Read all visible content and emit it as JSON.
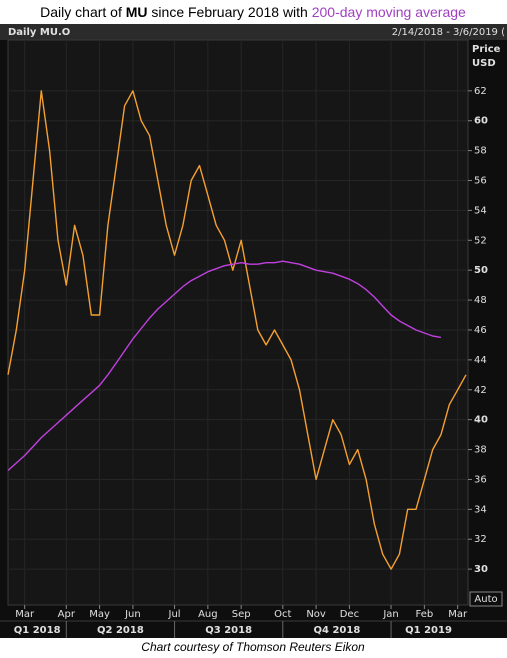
{
  "chart_data": {
    "type": "line",
    "title": {
      "prefix": "Daily chart of ",
      "ticker": "MU",
      "middle": " since February 2018 with ",
      "highlight": "200-day moving average"
    },
    "header_left": "Daily MU.O",
    "header_right": "2/14/2018 - 3/6/2019 (",
    "y_label_top": "Price",
    "y_label_unit": "USD",
    "scale_button": "Auto",
    "caption": "Chart courtesy of Thomson Reuters Eikon",
    "categories": [
      null,
      null,
      "Mar",
      null,
      null,
      null,
      null,
      "Apr",
      null,
      null,
      null,
      "May",
      null,
      null,
      null,
      "Jun",
      null,
      null,
      null,
      null,
      "Jul",
      null,
      null,
      null,
      "Aug",
      null,
      null,
      null,
      "Sep",
      null,
      null,
      null,
      null,
      "Oct",
      null,
      null,
      null,
      "Nov",
      null,
      null,
      null,
      "Dec",
      null,
      null,
      null,
      null,
      "Jan",
      null,
      null,
      null,
      "Feb",
      null,
      null,
      null,
      "Mar",
      null
    ],
    "quarter_categories": [
      "Q1 2018",
      null,
      null,
      null,
      null,
      null,
      null,
      "Q2 2018",
      null,
      null,
      null,
      null,
      null,
      null,
      null,
      null,
      null,
      null,
      null,
      null,
      "Q3 2018",
      null,
      null,
      null,
      null,
      null,
      null,
      null,
      null,
      null,
      null,
      null,
      null,
      "Q4 2018",
      null,
      null,
      null,
      null,
      null,
      null,
      null,
      null,
      null,
      null,
      null,
      null,
      "Q1 2019",
      null,
      null,
      null,
      null,
      null,
      null,
      null,
      null,
      null
    ],
    "series": [
      {
        "color": "#f5a030",
        "values": [
          43,
          46,
          50,
          56,
          62,
          58,
          52,
          49,
          53,
          51,
          47,
          47,
          53,
          57,
          61,
          62,
          60,
          59,
          56,
          53,
          51,
          53,
          56,
          57,
          55,
          53,
          52,
          50,
          52,
          49,
          46,
          45,
          46,
          45,
          44,
          42,
          39,
          36,
          38,
          40,
          39,
          37,
          38,
          36,
          33,
          31,
          30,
          31,
          34,
          34,
          36,
          38,
          39,
          41,
          42,
          43
        ]
      },
      {
        "color": "#c040e0",
        "values": [
          36.6,
          37.1,
          37.6,
          38.2,
          38.8,
          39.3,
          39.8,
          40.3,
          40.8,
          41.3,
          41.8,
          42.3,
          43.0,
          43.8,
          44.6,
          45.4,
          46.1,
          46.8,
          47.4,
          47.9,
          48.4,
          48.9,
          49.3,
          49.6,
          49.9,
          50.1,
          50.3,
          50.4,
          50.5,
          50.4,
          50.4,
          50.5,
          50.5,
          50.6,
          50.5,
          50.4,
          50.2,
          50.0,
          49.9,
          49.8,
          49.6,
          49.4,
          49.1,
          48.7,
          48.2,
          47.6,
          47.0,
          46.6,
          46.3,
          46.0,
          45.8,
          45.6,
          45.5,
          null,
          null,
          null
        ]
      }
    ],
    "ylim": [
      27.6,
      65.4
    ],
    "yticks": [
      30,
      32,
      34,
      36,
      38,
      40,
      42,
      44,
      46,
      48,
      50,
      52,
      54,
      56,
      58,
      60,
      62
    ],
    "title_highlight_color": "#a040c0"
  }
}
